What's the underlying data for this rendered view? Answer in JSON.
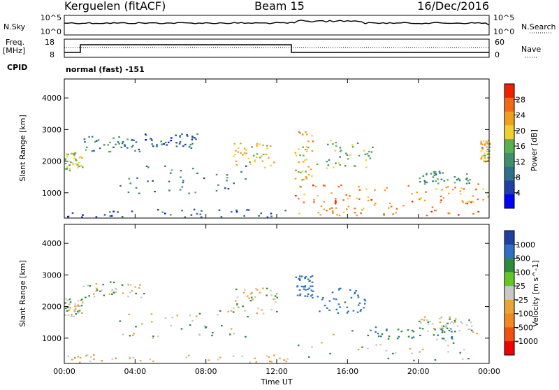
{
  "header": {
    "station": "Kerguelen (fitACF)",
    "beam": "Beam 15",
    "date": "16/Dec/2016"
  },
  "top_panels": {
    "nsky_label": "N.Sky",
    "nsky_ticks": [
      "10^5",
      "10^0"
    ],
    "nsearch_label": "N.Search",
    "nsearch_ticks": [
      "10^5",
      "10^0"
    ],
    "freq_label_1": "Freq.",
    "freq_label_2": "[MHz]",
    "freq_ticks": [
      "18",
      "8"
    ],
    "nave_label": "Nave",
    "nave_ticks": [
      "60",
      "0"
    ],
    "cpid_label": "CPID",
    "cpid_text": "normal (fast) -151"
  },
  "colors": {
    "power_scale": [
      "#0000ff",
      "#1f3fa6",
      "#2e6f8c",
      "#3f8f6c",
      "#58b050",
      "#f0d030",
      "#f0a020",
      "#f06818",
      "#f02000"
    ],
    "velocity_scale": [
      "#2040a0",
      "#3070c0",
      "#2d8a3e",
      "#62c62a",
      "#c8c8c8",
      "#e8a638",
      "#f08a20",
      "#f05010",
      "#f00000"
    ],
    "ground_scatter": "#c8c8c8"
  },
  "chart_data": [
    {
      "type": "heatmap",
      "title": "",
      "quantity": "Power",
      "xlabel": "Time UT",
      "ylabel": "Slant Range [km]",
      "xlim": [
        "00:00",
        "24:00"
      ],
      "ylim": [
        200,
        4600
      ],
      "x_ticks": [
        "00:00",
        "04:00",
        "08:00",
        "12:00",
        "16:00",
        "20:00",
        "00:00"
      ],
      "y_ticks": [
        "1000",
        "2000",
        "3000",
        "4000"
      ],
      "colorbar_label": "Power [dB]",
      "colorbar_ticks": [
        "4",
        "8",
        "12",
        "16",
        "20",
        "24",
        "28"
      ],
      "color_range": [
        0,
        30
      ],
      "regions": [
        {
          "t_start": 0.0,
          "t_end": 1.0,
          "r_min": 1700,
          "r_max": 2300,
          "level": 16
        },
        {
          "t_start": 1.0,
          "t_end": 4.5,
          "r_min": 2300,
          "r_max": 2800,
          "level": 10
        },
        {
          "t_start": 3.0,
          "t_end": 10.5,
          "r_min": 1000,
          "r_max": 1900,
          "level": 9
        },
        {
          "t_start": 4.5,
          "t_end": 7.5,
          "r_min": 2400,
          "r_max": 2900,
          "level": 6
        },
        {
          "t_start": 9.5,
          "t_end": 12.0,
          "r_min": 1800,
          "r_max": 2600,
          "level": 20
        },
        {
          "t_start": 0.0,
          "t_end": 13.0,
          "r_min": 250,
          "r_max": 500,
          "level": 6
        },
        {
          "t_start": 13.0,
          "t_end": 14.0,
          "r_min": 1400,
          "r_max": 3000,
          "level": 20
        },
        {
          "t_start": 14.0,
          "t_end": 17.5,
          "r_min": 1800,
          "r_max": 2700,
          "level": 14
        },
        {
          "t_start": 13.0,
          "t_end": 17.0,
          "r_min": 300,
          "r_max": 1300,
          "level": 24
        },
        {
          "t_start": 15.0,
          "t_end": 23.5,
          "r_min": 300,
          "r_max": 800,
          "level": 26
        },
        {
          "t_start": 17.0,
          "t_end": 24.0,
          "r_min": 700,
          "r_max": 1300,
          "level": 22
        },
        {
          "t_start": 20.0,
          "t_end": 23.0,
          "r_min": 1300,
          "r_max": 1700,
          "level": 12
        },
        {
          "t_start": 23.5,
          "t_end": 24.0,
          "r_min": 2000,
          "r_max": 2700,
          "level": 20
        }
      ]
    },
    {
      "type": "heatmap",
      "title": "",
      "quantity": "Velocity",
      "xlabel": "Time UT",
      "ylabel": "Slant Range [km]",
      "xlim": [
        "00:00",
        "24:00"
      ],
      "ylim": [
        200,
        4600
      ],
      "x_ticks": [
        "00:00",
        "04:00",
        "08:00",
        "12:00",
        "16:00",
        "20:00",
        "00:00"
      ],
      "y_ticks": [
        "1000",
        "2000",
        "3000",
        "4000"
      ],
      "colorbar_label": "Velocity [m s^-1]",
      "colorbar_ticks": [
        "1000",
        "500",
        "100",
        "25",
        "-25",
        "-100",
        "-500",
        "-1000"
      ],
      "regions": [
        {
          "t_start": 0.0,
          "t_end": 1.0,
          "r_min": 1700,
          "r_max": 2300,
          "velocity": 0
        },
        {
          "t_start": 1.0,
          "t_end": 4.5,
          "r_min": 2300,
          "r_max": 2800,
          "velocity": 0
        },
        {
          "t_start": 3.0,
          "t_end": 10.5,
          "r_min": 1000,
          "r_max": 1900,
          "velocity": 0
        },
        {
          "t_start": 9.5,
          "t_end": 12.0,
          "r_min": 1800,
          "r_max": 2600,
          "velocity": 0
        },
        {
          "t_start": 0.0,
          "t_end": 13.0,
          "r_min": 250,
          "r_max": 500,
          "velocity": -60
        },
        {
          "t_start": 13.0,
          "t_end": 14.0,
          "r_min": 2300,
          "r_max": 3000,
          "velocity": 200
        },
        {
          "t_start": 14.0,
          "t_end": 17.0,
          "r_min": 1800,
          "r_max": 2600,
          "velocity": 150
        },
        {
          "t_start": 13.0,
          "t_end": 23.5,
          "r_min": 300,
          "r_max": 1300,
          "velocity": 0
        },
        {
          "t_start": 17.0,
          "t_end": 22.0,
          "r_min": 1000,
          "r_max": 1400,
          "velocity": 80
        },
        {
          "t_start": 20.0,
          "t_end": 23.0,
          "r_min": 1300,
          "r_max": 1700,
          "velocity": 0
        }
      ]
    }
  ]
}
